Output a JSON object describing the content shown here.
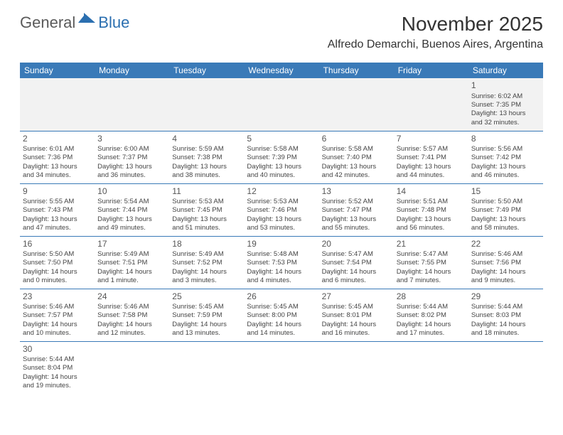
{
  "header": {
    "logo_general": "General",
    "logo_blue": "Blue",
    "month_title": "November 2025",
    "location": "Alfredo Demarchi, Buenos Aires, Argentina"
  },
  "colors": {
    "header_bg": "#3a7ab8",
    "header_text": "#ffffff",
    "border": "#3a7ab8",
    "logo_general": "#5a5a5a",
    "logo_blue": "#2b6fb0",
    "text": "#444444",
    "gray_row": "#f2f2f2"
  },
  "day_headers": [
    "Sunday",
    "Monday",
    "Tuesday",
    "Wednesday",
    "Thursday",
    "Friday",
    "Saturday"
  ],
  "weeks": [
    [
      null,
      null,
      null,
      null,
      null,
      null,
      {
        "n": "1",
        "sr": "Sunrise: 6:02 AM",
        "ss": "Sunset: 7:35 PM",
        "dl1": "Daylight: 13 hours",
        "dl2": "and 32 minutes."
      }
    ],
    [
      {
        "n": "2",
        "sr": "Sunrise: 6:01 AM",
        "ss": "Sunset: 7:36 PM",
        "dl1": "Daylight: 13 hours",
        "dl2": "and 34 minutes."
      },
      {
        "n": "3",
        "sr": "Sunrise: 6:00 AM",
        "ss": "Sunset: 7:37 PM",
        "dl1": "Daylight: 13 hours",
        "dl2": "and 36 minutes."
      },
      {
        "n": "4",
        "sr": "Sunrise: 5:59 AM",
        "ss": "Sunset: 7:38 PM",
        "dl1": "Daylight: 13 hours",
        "dl2": "and 38 minutes."
      },
      {
        "n": "5",
        "sr": "Sunrise: 5:58 AM",
        "ss": "Sunset: 7:39 PM",
        "dl1": "Daylight: 13 hours",
        "dl2": "and 40 minutes."
      },
      {
        "n": "6",
        "sr": "Sunrise: 5:58 AM",
        "ss": "Sunset: 7:40 PM",
        "dl1": "Daylight: 13 hours",
        "dl2": "and 42 minutes."
      },
      {
        "n": "7",
        "sr": "Sunrise: 5:57 AM",
        "ss": "Sunset: 7:41 PM",
        "dl1": "Daylight: 13 hours",
        "dl2": "and 44 minutes."
      },
      {
        "n": "8",
        "sr": "Sunrise: 5:56 AM",
        "ss": "Sunset: 7:42 PM",
        "dl1": "Daylight: 13 hours",
        "dl2": "and 46 minutes."
      }
    ],
    [
      {
        "n": "9",
        "sr": "Sunrise: 5:55 AM",
        "ss": "Sunset: 7:43 PM",
        "dl1": "Daylight: 13 hours",
        "dl2": "and 47 minutes."
      },
      {
        "n": "10",
        "sr": "Sunrise: 5:54 AM",
        "ss": "Sunset: 7:44 PM",
        "dl1": "Daylight: 13 hours",
        "dl2": "and 49 minutes."
      },
      {
        "n": "11",
        "sr": "Sunrise: 5:53 AM",
        "ss": "Sunset: 7:45 PM",
        "dl1": "Daylight: 13 hours",
        "dl2": "and 51 minutes."
      },
      {
        "n": "12",
        "sr": "Sunrise: 5:53 AM",
        "ss": "Sunset: 7:46 PM",
        "dl1": "Daylight: 13 hours",
        "dl2": "and 53 minutes."
      },
      {
        "n": "13",
        "sr": "Sunrise: 5:52 AM",
        "ss": "Sunset: 7:47 PM",
        "dl1": "Daylight: 13 hours",
        "dl2": "and 55 minutes."
      },
      {
        "n": "14",
        "sr": "Sunrise: 5:51 AM",
        "ss": "Sunset: 7:48 PM",
        "dl1": "Daylight: 13 hours",
        "dl2": "and 56 minutes."
      },
      {
        "n": "15",
        "sr": "Sunrise: 5:50 AM",
        "ss": "Sunset: 7:49 PM",
        "dl1": "Daylight: 13 hours",
        "dl2": "and 58 minutes."
      }
    ],
    [
      {
        "n": "16",
        "sr": "Sunrise: 5:50 AM",
        "ss": "Sunset: 7:50 PM",
        "dl1": "Daylight: 14 hours",
        "dl2": "and 0 minutes."
      },
      {
        "n": "17",
        "sr": "Sunrise: 5:49 AM",
        "ss": "Sunset: 7:51 PM",
        "dl1": "Daylight: 14 hours",
        "dl2": "and 1 minute."
      },
      {
        "n": "18",
        "sr": "Sunrise: 5:49 AM",
        "ss": "Sunset: 7:52 PM",
        "dl1": "Daylight: 14 hours",
        "dl2": "and 3 minutes."
      },
      {
        "n": "19",
        "sr": "Sunrise: 5:48 AM",
        "ss": "Sunset: 7:53 PM",
        "dl1": "Daylight: 14 hours",
        "dl2": "and 4 minutes."
      },
      {
        "n": "20",
        "sr": "Sunrise: 5:47 AM",
        "ss": "Sunset: 7:54 PM",
        "dl1": "Daylight: 14 hours",
        "dl2": "and 6 minutes."
      },
      {
        "n": "21",
        "sr": "Sunrise: 5:47 AM",
        "ss": "Sunset: 7:55 PM",
        "dl1": "Daylight: 14 hours",
        "dl2": "and 7 minutes."
      },
      {
        "n": "22",
        "sr": "Sunrise: 5:46 AM",
        "ss": "Sunset: 7:56 PM",
        "dl1": "Daylight: 14 hours",
        "dl2": "and 9 minutes."
      }
    ],
    [
      {
        "n": "23",
        "sr": "Sunrise: 5:46 AM",
        "ss": "Sunset: 7:57 PM",
        "dl1": "Daylight: 14 hours",
        "dl2": "and 10 minutes."
      },
      {
        "n": "24",
        "sr": "Sunrise: 5:46 AM",
        "ss": "Sunset: 7:58 PM",
        "dl1": "Daylight: 14 hours",
        "dl2": "and 12 minutes."
      },
      {
        "n": "25",
        "sr": "Sunrise: 5:45 AM",
        "ss": "Sunset: 7:59 PM",
        "dl1": "Daylight: 14 hours",
        "dl2": "and 13 minutes."
      },
      {
        "n": "26",
        "sr": "Sunrise: 5:45 AM",
        "ss": "Sunset: 8:00 PM",
        "dl1": "Daylight: 14 hours",
        "dl2": "and 14 minutes."
      },
      {
        "n": "27",
        "sr": "Sunrise: 5:45 AM",
        "ss": "Sunset: 8:01 PM",
        "dl1": "Daylight: 14 hours",
        "dl2": "and 16 minutes."
      },
      {
        "n": "28",
        "sr": "Sunrise: 5:44 AM",
        "ss": "Sunset: 8:02 PM",
        "dl1": "Daylight: 14 hours",
        "dl2": "and 17 minutes."
      },
      {
        "n": "29",
        "sr": "Sunrise: 5:44 AM",
        "ss": "Sunset: 8:03 PM",
        "dl1": "Daylight: 14 hours",
        "dl2": "and 18 minutes."
      }
    ],
    [
      {
        "n": "30",
        "sr": "Sunrise: 5:44 AM",
        "ss": "Sunset: 8:04 PM",
        "dl1": "Daylight: 14 hours",
        "dl2": "and 19 minutes."
      },
      null,
      null,
      null,
      null,
      null,
      null
    ]
  ]
}
